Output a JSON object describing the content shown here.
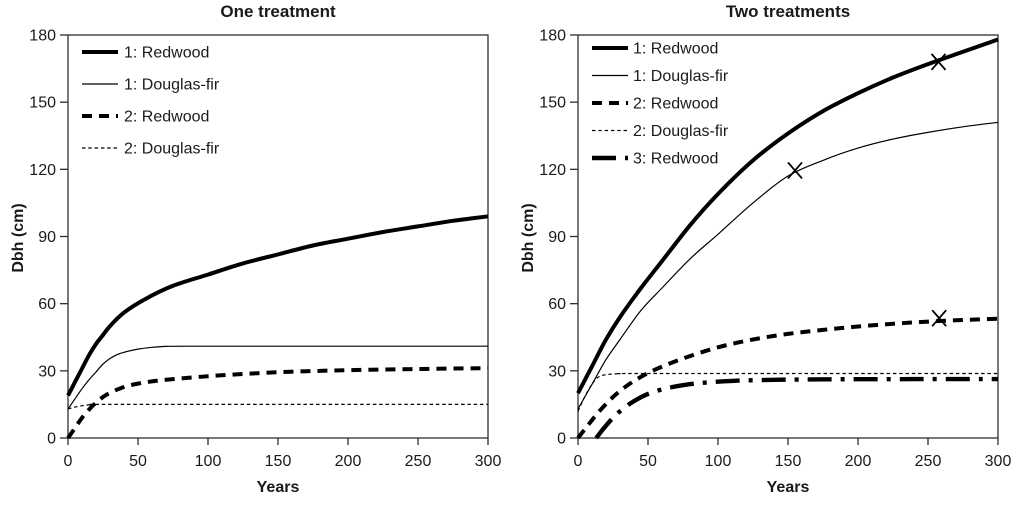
{
  "figure": {
    "background": "#ffffff",
    "ink_color": "#000000",
    "frame_color": "#2f2f2f"
  },
  "chart_data": [
    {
      "type": "line",
      "title": "One treatment",
      "xlabel": "Years",
      "ylabel": "Dbh (cm)",
      "xlim": [
        0,
        300
      ],
      "ylim": [
        0,
        180
      ],
      "xticks": [
        0,
        50,
        100,
        150,
        200,
        250,
        300
      ],
      "yticks": [
        0,
        30,
        60,
        90,
        120,
        150,
        180
      ],
      "grid": false,
      "legend_position": "top-left",
      "marker_glyph": "X",
      "markers": [],
      "series": [
        {
          "name": "1: Redwood",
          "line_style": "thick-solid",
          "color": "#000000",
          "x": [
            0,
            5,
            10,
            15,
            20,
            25,
            30,
            40,
            55,
            75,
            100,
            125,
            150,
            175,
            200,
            225,
            250,
            275,
            300
          ],
          "y": [
            19,
            25,
            31,
            37,
            42,
            46,
            50,
            56,
            62,
            68,
            73,
            78,
            82,
            86,
            89,
            92,
            94.5,
            97,
            99
          ]
        },
        {
          "name": "1: Douglas-fir",
          "line_style": "thin-solid",
          "color": "#000000",
          "x": [
            0,
            5,
            10,
            15,
            20,
            25,
            30,
            35,
            40,
            50,
            60,
            70,
            85,
            150,
            300
          ],
          "y": [
            13,
            17.5,
            22,
            26,
            29.5,
            33,
            35.5,
            37.2,
            38.3,
            39.7,
            40.5,
            40.9,
            41,
            41,
            41
          ]
        },
        {
          "name": "2: Redwood",
          "line_style": "thick-dashed",
          "color": "#000000",
          "x": [
            0,
            5,
            10,
            15,
            20,
            25,
            30,
            40,
            50,
            60,
            75,
            100,
            125,
            150,
            175,
            200,
            250,
            300
          ],
          "y": [
            0,
            4.5,
            9,
            12.7,
            15.8,
            18.3,
            20.2,
            22.8,
            24.3,
            25.3,
            26.3,
            27.6,
            28.6,
            29.4,
            29.9,
            30.3,
            30.8,
            31.2
          ]
        },
        {
          "name": "2: Douglas-fir",
          "line_style": "thin-dotted",
          "color": "#000000",
          "x": [
            0,
            5,
            10,
            15,
            20,
            25,
            150,
            300
          ],
          "y": [
            13,
            13.8,
            14.4,
            14.8,
            15,
            15,
            15,
            15
          ]
        }
      ]
    },
    {
      "type": "line",
      "title": "Two treatments",
      "xlabel": "Years",
      "ylabel": "Dbh (cm)",
      "xlim": [
        0,
        300
      ],
      "ylim": [
        0,
        180
      ],
      "xticks": [
        0,
        50,
        100,
        150,
        200,
        250,
        300
      ],
      "yticks": [
        0,
        30,
        60,
        90,
        120,
        150,
        180
      ],
      "grid": false,
      "legend_position": "top-left",
      "marker_glyph": "X",
      "markers": [
        {
          "on_series": "1: Douglas-fir",
          "x": 155,
          "y": 119.5
        },
        {
          "on_series": "1: Redwood",
          "x": 257.5,
          "y": 168
        },
        {
          "on_series": "2: Redwood",
          "x": 258,
          "y": 53.5
        }
      ],
      "series": [
        {
          "name": "1: Redwood",
          "line_style": "thick-solid",
          "color": "#000000",
          "x": [
            0,
            10,
            20,
            30,
            45,
            60,
            80,
            100,
            125,
            150,
            175,
            200,
            225,
            250,
            275,
            300
          ],
          "y": [
            20,
            32,
            44,
            54,
            67,
            79,
            95,
            109,
            124,
            136,
            146,
            154,
            161,
            167,
            172.5,
            178
          ]
        },
        {
          "name": "1: Douglas-fir",
          "line_style": "thin-solid",
          "color": "#000000",
          "x": [
            0,
            10,
            20,
            30,
            45,
            60,
            80,
            100,
            125,
            150,
            175,
            200,
            225,
            250,
            275,
            300
          ],
          "y": [
            13,
            24,
            35,
            44,
            57,
            67,
            80,
            91,
            105,
            117,
            124,
            129.5,
            133.5,
            136.5,
            139,
            141
          ]
        },
        {
          "name": "2: Redwood",
          "line_style": "thick-dashed",
          "color": "#000000",
          "x": [
            0,
            5,
            10,
            15,
            20,
            25,
            30,
            40,
            55,
            75,
            100,
            125,
            150,
            175,
            200,
            225,
            250,
            275,
            300
          ],
          "y": [
            0,
            4,
            8,
            11.8,
            15.2,
            18.3,
            21,
            25.5,
            30.5,
            35.5,
            40.5,
            44,
            46.5,
            48.3,
            49.8,
            51,
            52,
            52.7,
            53.3
          ]
        },
        {
          "name": "2: Douglas-fir",
          "line_style": "thin-dotted",
          "color": "#000000",
          "x": [
            0,
            7,
            14,
            22,
            30,
            40,
            150,
            300
          ],
          "y": [
            12,
            21,
            27,
            28.4,
            28.7,
            28.8,
            28.8,
            28.8
          ]
        },
        {
          "name": "3: Redwood",
          "line_style": "thick-dashdot",
          "color": "#000000",
          "x": [
            13,
            18,
            25,
            32,
            40,
            50,
            62,
            75,
            90,
            110,
            140,
            180,
            240,
            300
          ],
          "y": [
            0,
            4,
            9,
            13,
            16.5,
            19.7,
            22,
            23.6,
            24.7,
            25.5,
            26,
            26.2,
            26.3,
            26.3
          ]
        }
      ]
    }
  ]
}
